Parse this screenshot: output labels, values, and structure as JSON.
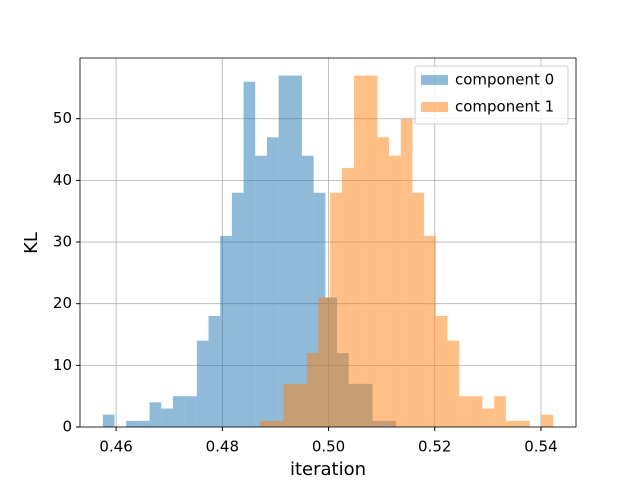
{
  "chart_data": {
    "type": "histogram",
    "xlabel": "iteration",
    "ylabel": "KL",
    "xlim": [
      0.4532,
      0.5466
    ],
    "ylim": [
      0,
      59.85
    ],
    "xticks": [
      0.46,
      0.48,
      {
        "value": 0.5,
        "label": "0.50"
      },
      0.52,
      0.54
    ],
    "yticks": [
      0,
      10,
      20,
      30,
      40,
      50
    ],
    "grid": true,
    "legend": "upper right",
    "alpha": 0.5,
    "series": [
      {
        "name": "component 0",
        "color": "#1f77b4",
        "bins": [
          0.4575,
          0.4597,
          0.4619,
          0.4641,
          0.4663,
          0.4685,
          0.4707,
          0.4729,
          0.4752,
          0.4774,
          0.4796,
          0.4818,
          0.484,
          0.4862,
          0.4884,
          0.4906,
          0.4928,
          0.495,
          0.4972,
          0.4994,
          0.5016,
          0.5038,
          0.5061,
          0.5083,
          0.5105,
          0.5127
        ],
        "values": [
          2,
          0,
          1,
          1,
          4,
          3,
          5,
          5,
          14,
          18,
          31,
          38,
          56,
          44,
          47,
          57,
          57,
          44,
          38,
          21,
          12,
          7,
          7,
          1,
          1
        ]
      },
      {
        "name": "component 1",
        "color": "#ff7f0e",
        "bins": [
          0.4871,
          0.4893,
          0.4915,
          0.4937,
          0.4959,
          0.4981,
          0.5003,
          0.5025,
          0.5048,
          0.507,
          0.5092,
          0.5114,
          0.5136,
          0.5158,
          0.518,
          0.5202,
          0.5224,
          0.5246,
          0.5268,
          0.529,
          0.5312,
          0.5334,
          0.5357,
          0.5379,
          0.5401,
          0.5423
        ],
        "values": [
          1,
          1,
          7,
          7,
          12,
          21,
          38,
          42,
          57,
          57,
          47,
          44,
          50,
          38,
          31,
          18,
          14,
          5,
          5,
          3,
          5,
          1,
          1,
          0,
          2
        ]
      }
    ]
  }
}
